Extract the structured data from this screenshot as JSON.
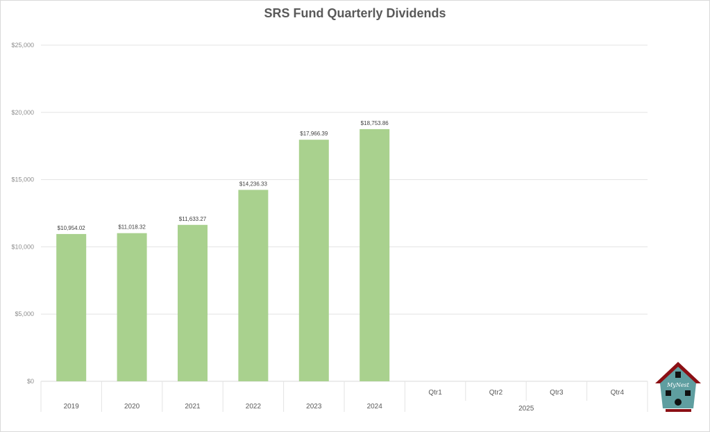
{
  "chart_data": {
    "type": "bar",
    "title": "SRS Fund Quarterly Dividends",
    "categories": [
      "2019",
      "2020",
      "2021",
      "2022",
      "2023",
      "2024",
      "Qtr1",
      "Qtr2",
      "Qtr3",
      "Qtr4"
    ],
    "category_groups": [
      {
        "label": "2025",
        "members": [
          "Qtr1",
          "Qtr2",
          "Qtr3",
          "Qtr4"
        ]
      }
    ],
    "values": [
      10954.02,
      11018.32,
      11633.27,
      14236.33,
      17966.39,
      18753.86,
      null,
      null,
      null,
      null
    ],
    "data_labels": [
      "$10,954.02",
      "$11,018.32",
      "$11,633.27",
      "$14,236.33",
      "$17,966.39",
      "$18,753.86",
      "",
      "",
      "",
      ""
    ],
    "ylim": [
      0,
      25000
    ],
    "yticks": [
      0,
      5000,
      10000,
      15000,
      20000,
      25000
    ],
    "ytick_labels": [
      "$0",
      "$5,000",
      "$10,000",
      "$15,000",
      "$20,000",
      "$25,000"
    ],
    "xlabel": "",
    "ylabel": "",
    "grid": true,
    "bar_color": "#a9d18e"
  },
  "logo": {
    "text": "MyNest"
  }
}
